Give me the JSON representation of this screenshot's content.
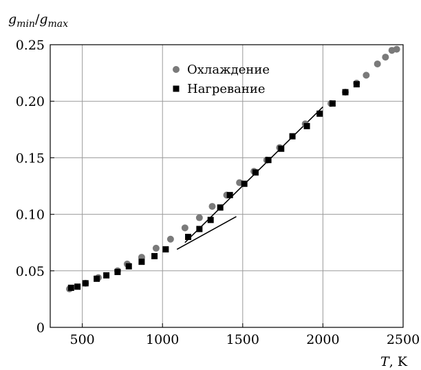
{
  "chart_data": {
    "type": "scatter",
    "xlabel": "T, K",
    "ylabel": "g_min/g_max",
    "xlim": [
      300,
      2500
    ],
    "ylim": [
      0,
      0.25
    ],
    "x_ticks": [
      "500",
      "1000",
      "1500",
      "2000",
      "2500"
    ],
    "y_ticks": [
      "0",
      "0.05",
      "0.10",
      "0.15",
      "0.20",
      "0.25"
    ],
    "grid": true,
    "legend_position": "top-center",
    "series": [
      {
        "name": "Охлаждение",
        "marker": "circle",
        "color": "#7a7a7a",
        "x": [
          420,
          520,
          600,
          720,
          780,
          870,
          960,
          1050,
          1140,
          1230,
          1310,
          1400,
          1480,
          1570,
          1650,
          1730,
          1890,
          2050,
          2140,
          2210,
          2270,
          2340,
          2390,
          2430,
          2460
        ],
        "y": [
          0.034,
          0.039,
          0.044,
          0.05,
          0.056,
          0.062,
          0.07,
          0.078,
          0.088,
          0.097,
          0.107,
          0.117,
          0.128,
          0.138,
          0.148,
          0.159,
          0.18,
          0.198,
          0.208,
          0.216,
          0.223,
          0.233,
          0.239,
          0.245,
          0.246
        ]
      },
      {
        "name": "Нагревание",
        "marker": "square",
        "color": "#000000",
        "x": [
          430,
          470,
          520,
          590,
          650,
          720,
          790,
          870,
          950,
          1020,
          1160,
          1230,
          1300,
          1360,
          1420,
          1510,
          1580,
          1660,
          1740,
          1810,
          1900,
          1980,
          2060,
          2140,
          2210
        ],
        "y": [
          0.035,
          0.036,
          0.039,
          0.043,
          0.046,
          0.049,
          0.054,
          0.058,
          0.063,
          0.069,
          0.08,
          0.087,
          0.095,
          0.106,
          0.117,
          0.127,
          0.137,
          0.148,
          0.158,
          0.169,
          0.178,
          0.189,
          0.198,
          0.208,
          0.215
        ]
      }
    ],
    "fit_lines": [
      {
        "x": [
          1090,
          1460
        ],
        "y": [
          0.069,
          0.098
        ]
      },
      {
        "x": [
          1140,
          2000
        ],
        "y": [
          0.075,
          0.195
        ]
      }
    ]
  }
}
